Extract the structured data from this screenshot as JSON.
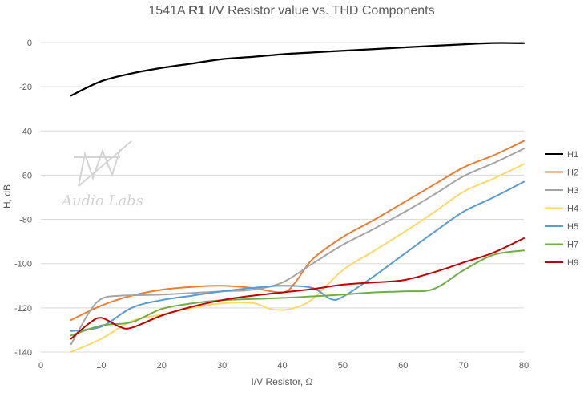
{
  "chart_data": {
    "type": "line",
    "title": {
      "prefix": "1541A ",
      "bold": "R1",
      "suffix": " I/V Resistor value vs. THD Components"
    },
    "xlabel": "I/V Resistor, Ω",
    "ylabel": "H, dB",
    "xlim": [
      0,
      80
    ],
    "ylim": [
      -140,
      0
    ],
    "x_ticks": [
      0,
      10,
      20,
      30,
      40,
      50,
      60,
      70,
      80
    ],
    "y_ticks": [
      0,
      -20,
      -40,
      -60,
      -80,
      -100,
      -120,
      -140
    ],
    "grid": "horizontal",
    "legend_position": "right",
    "series": [
      {
        "name": "H1",
        "color": "#000000",
        "points": [
          [
            5,
            -24
          ],
          [
            10,
            -17.5
          ],
          [
            15,
            -14
          ],
          [
            20,
            -11.5
          ],
          [
            25,
            -9.5
          ],
          [
            30,
            -7.5
          ],
          [
            35,
            -6.5
          ],
          [
            40,
            -5.3
          ],
          [
            45,
            -4.5
          ],
          [
            50,
            -3.7
          ],
          [
            55,
            -3
          ],
          [
            60,
            -2.2
          ],
          [
            65,
            -1.5
          ],
          [
            70,
            -0.8
          ],
          [
            75,
            -0.2
          ],
          [
            80,
            -0.3
          ]
        ]
      },
      {
        "name": "H2",
        "color": "#ED7D31",
        "points": [
          [
            5,
            -125.5
          ],
          [
            10,
            -119
          ],
          [
            15,
            -114.5
          ],
          [
            20,
            -111.8
          ],
          [
            25,
            -110.5
          ],
          [
            30,
            -110
          ],
          [
            35,
            -111
          ],
          [
            40,
            -113
          ],
          [
            42,
            -109
          ],
          [
            45,
            -98
          ],
          [
            50,
            -88
          ],
          [
            55,
            -80.5
          ],
          [
            60,
            -72.5
          ],
          [
            65,
            -64.5
          ],
          [
            70,
            -56.5
          ],
          [
            75,
            -51
          ],
          [
            80,
            -44.5
          ]
        ]
      },
      {
        "name": "H3",
        "color": "#A5A5A5",
        "points": [
          [
            5,
            -136.5
          ],
          [
            8,
            -122
          ],
          [
            10,
            -116
          ],
          [
            13,
            -114.5
          ],
          [
            20,
            -114
          ],
          [
            30,
            -112.5
          ],
          [
            35,
            -111.8
          ],
          [
            40,
            -108.5
          ],
          [
            45,
            -100
          ],
          [
            50,
            -91.5
          ],
          [
            55,
            -84.5
          ],
          [
            60,
            -77
          ],
          [
            65,
            -69
          ],
          [
            70,
            -60.5
          ],
          [
            75,
            -54.5
          ],
          [
            80,
            -48
          ]
        ]
      },
      {
        "name": "H4",
        "color": "#FFD966",
        "points": [
          [
            5,
            -140
          ],
          [
            10,
            -134
          ],
          [
            15,
            -126
          ],
          [
            20,
            -123
          ],
          [
            25,
            -120
          ],
          [
            30,
            -118
          ],
          [
            35,
            -117.8
          ],
          [
            38,
            -120.5
          ],
          [
            40,
            -121
          ],
          [
            42,
            -120
          ],
          [
            45,
            -116
          ],
          [
            50,
            -103
          ],
          [
            55,
            -94.5
          ],
          [
            60,
            -86
          ],
          [
            65,
            -77
          ],
          [
            70,
            -67.5
          ],
          [
            75,
            -61.5
          ],
          [
            80,
            -55
          ]
        ]
      },
      {
        "name": "H5",
        "color": "#5B9BD5",
        "points": [
          [
            5,
            -130.5
          ],
          [
            10,
            -128.5
          ],
          [
            15,
            -120
          ],
          [
            20,
            -116.5
          ],
          [
            25,
            -114.5
          ],
          [
            30,
            -112.5
          ],
          [
            35,
            -111
          ],
          [
            40,
            -110
          ],
          [
            45,
            -111
          ],
          [
            48,
            -116
          ],
          [
            50,
            -115
          ],
          [
            55,
            -106
          ],
          [
            60,
            -96
          ],
          [
            65,
            -86
          ],
          [
            70,
            -76.5
          ],
          [
            75,
            -70
          ],
          [
            80,
            -63
          ]
        ]
      },
      {
        "name": "H7",
        "color": "#70AD47",
        "points": [
          [
            5,
            -132.5
          ],
          [
            10,
            -128
          ],
          [
            15,
            -126.5
          ],
          [
            20,
            -120.5
          ],
          [
            25,
            -118
          ],
          [
            30,
            -116.5
          ],
          [
            35,
            -116
          ],
          [
            40,
            -115.5
          ],
          [
            45,
            -114.8
          ],
          [
            50,
            -114
          ],
          [
            55,
            -113
          ],
          [
            60,
            -112.5
          ],
          [
            65,
            -111.5
          ],
          [
            70,
            -103
          ],
          [
            75,
            -96
          ],
          [
            80,
            -94
          ]
        ]
      },
      {
        "name": "H9",
        "color": "#C00000",
        "points": [
          [
            5,
            -134
          ],
          [
            8,
            -127
          ],
          [
            10,
            -124.5
          ],
          [
            13,
            -128.5
          ],
          [
            15,
            -129
          ],
          [
            20,
            -123.5
          ],
          [
            25,
            -119.5
          ],
          [
            30,
            -116.5
          ],
          [
            35,
            -114.5
          ],
          [
            40,
            -113
          ],
          [
            45,
            -111.5
          ],
          [
            50,
            -109.5
          ],
          [
            55,
            -108.5
          ],
          [
            60,
            -107.5
          ],
          [
            65,
            -104
          ],
          [
            70,
            -99.5
          ],
          [
            75,
            -95
          ],
          [
            80,
            -88.5
          ]
        ]
      }
    ]
  },
  "watermark": {
    "text": "Audio Labs"
  }
}
